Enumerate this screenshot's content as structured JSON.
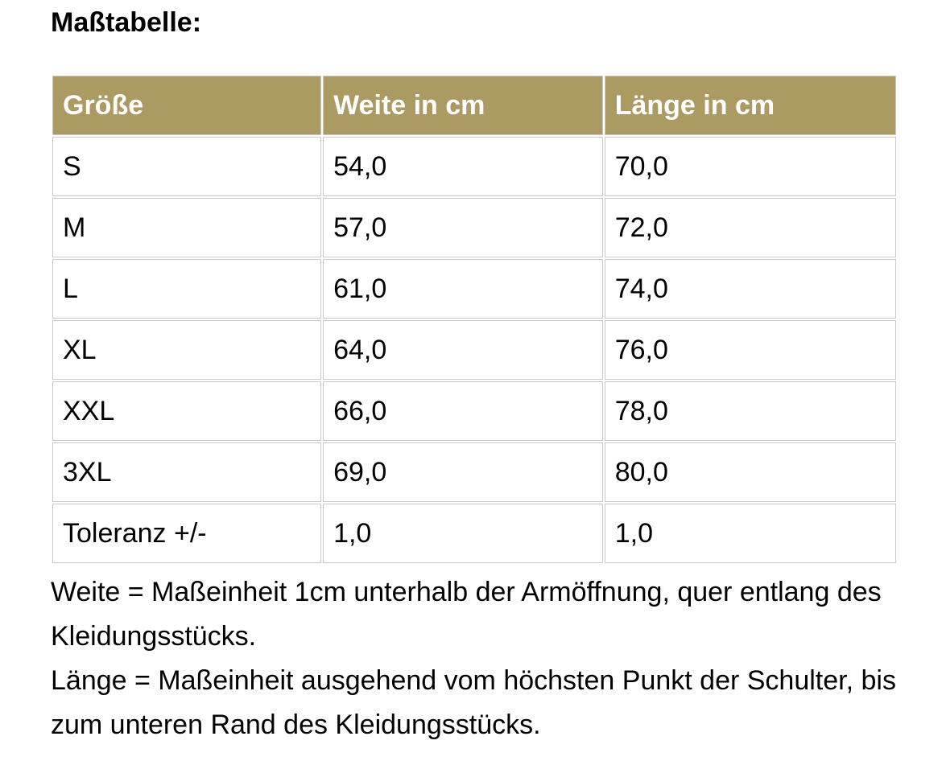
{
  "page": {
    "title": "Maßtabelle:"
  },
  "table": {
    "headers": [
      "Größe",
      "Weite in cm",
      "Länge in cm"
    ],
    "rows": [
      [
        "S",
        "54,0",
        "70,0"
      ],
      [
        "M",
        "57,0",
        "72,0"
      ],
      [
        "L",
        "61,0",
        "74,0"
      ],
      [
        "XL",
        "64,0",
        "76,0"
      ],
      [
        "XXL",
        "66,0",
        "78,0"
      ],
      [
        "3XL",
        "69,0",
        "80,0"
      ],
      [
        "Toleranz +/-",
        "1,0",
        "1,0"
      ]
    ]
  },
  "notes": {
    "weite": "Weite = Maßeinheit 1cm unterhalb der Armöffnung, quer entlang des Kleidungsstücks.",
    "laenge": "Länge = Maßeinheit ausgehend vom höchsten Punkt der Schulter, bis zum unteren Rand des Kleidungsstücks."
  },
  "colors": {
    "header_bg": "#ab9a62",
    "header_text": "#ffffff",
    "border": "#c9c9c9",
    "text": "#000000",
    "page_bg": "#ffffff"
  }
}
